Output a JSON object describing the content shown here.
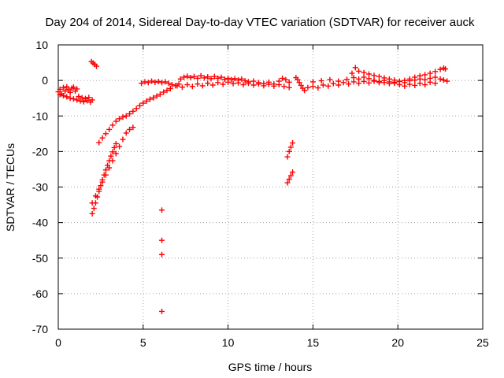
{
  "chart_data": {
    "type": "scatter",
    "title": "Day 204 of 2014, Sidereal Day-to-day VTEC variation (SDTVAR) for receiver auck",
    "xlabel": "GPS time / hours",
    "ylabel": "SDTVAR / TECUs",
    "xlim": [
      0,
      25
    ],
    "ylim": [
      -70,
      10
    ],
    "xticks": [
      "0",
      "5",
      "10",
      "15",
      "20",
      "25"
    ],
    "yticks": [
      "10",
      "0",
      "-10",
      "-20",
      "-30",
      "-40",
      "-50",
      "-60",
      "-70"
    ],
    "grid": true,
    "marker": "+",
    "color": "#ff0000",
    "series": [
      {
        "name": "SDTVAR",
        "points": [
          [
            0.0,
            -3.2
          ],
          [
            0.1,
            -2.5
          ],
          [
            0.2,
            -3.8
          ],
          [
            0.3,
            -2.0
          ],
          [
            0.4,
            -3.0
          ],
          [
            0.5,
            -1.8
          ],
          [
            0.6,
            -2.6
          ],
          [
            0.7,
            -3.4
          ],
          [
            0.8,
            -2.2
          ],
          [
            0.9,
            -1.9
          ],
          [
            1.0,
            -3.0
          ],
          [
            1.1,
            -2.4
          ],
          [
            0.1,
            -4.0
          ],
          [
            0.3,
            -4.3
          ],
          [
            0.5,
            -4.6
          ],
          [
            0.7,
            -5.0
          ],
          [
            0.9,
            -5.2
          ],
          [
            1.1,
            -5.5
          ],
          [
            1.3,
            -5.8
          ],
          [
            1.5,
            -6.0
          ],
          [
            1.7,
            -5.7
          ],
          [
            1.9,
            -6.1
          ],
          [
            2.0,
            -5.5
          ],
          [
            1.2,
            -4.5
          ],
          [
            1.4,
            -4.9
          ],
          [
            1.6,
            -5.1
          ],
          [
            1.8,
            -4.8
          ],
          [
            1.95,
            5.3
          ],
          [
            2.05,
            4.9
          ],
          [
            2.15,
            4.5
          ],
          [
            2.25,
            4.0
          ],
          [
            2.0,
            -37.5
          ],
          [
            2.1,
            -36.0
          ],
          [
            2.2,
            -34.5
          ],
          [
            2.3,
            -32.8
          ],
          [
            2.4,
            -31.2
          ],
          [
            2.5,
            -29.6
          ],
          [
            2.6,
            -28.0
          ],
          [
            2.7,
            -26.6
          ],
          [
            2.8,
            -25.2
          ],
          [
            2.9,
            -23.9
          ],
          [
            3.0,
            -22.6
          ],
          [
            3.1,
            -21.3
          ],
          [
            3.2,
            -20.1
          ],
          [
            3.3,
            -18.9
          ],
          [
            3.4,
            -17.8
          ],
          [
            2.0,
            -34.5
          ],
          [
            2.2,
            -32.5
          ],
          [
            2.4,
            -30.6
          ],
          [
            2.6,
            -28.6
          ],
          [
            2.8,
            -26.6
          ],
          [
            3.0,
            -24.6
          ],
          [
            3.2,
            -22.6
          ],
          [
            3.4,
            -20.6
          ],
          [
            3.6,
            -18.6
          ],
          [
            3.8,
            -16.6
          ],
          [
            4.0,
            -14.8
          ],
          [
            4.2,
            -13.8
          ],
          [
            4.4,
            -13.2
          ],
          [
            2.4,
            -17.5
          ],
          [
            2.6,
            -16.2
          ],
          [
            2.8,
            -15.0
          ],
          [
            3.0,
            -13.8
          ],
          [
            3.2,
            -12.6
          ],
          [
            3.4,
            -11.5
          ],
          [
            3.6,
            -10.8
          ],
          [
            3.8,
            -10.3
          ],
          [
            4.0,
            -10.0
          ],
          [
            4.2,
            -9.4
          ],
          [
            4.4,
            -8.7
          ],
          [
            4.6,
            -7.9
          ],
          [
            4.8,
            -7.1
          ],
          [
            5.0,
            -6.4
          ],
          [
            5.2,
            -5.8
          ],
          [
            5.4,
            -5.3
          ],
          [
            5.6,
            -4.9
          ],
          [
            5.8,
            -4.4
          ],
          [
            6.0,
            -3.9
          ],
          [
            6.2,
            -3.3
          ],
          [
            6.4,
            -2.8
          ],
          [
            6.6,
            -2.3
          ],
          [
            4.9,
            -0.8
          ],
          [
            5.1,
            -0.4
          ],
          [
            5.3,
            -0.6
          ],
          [
            5.5,
            -0.2
          ],
          [
            5.7,
            -0.5
          ],
          [
            5.9,
            -0.3
          ],
          [
            6.1,
            -0.6
          ],
          [
            6.3,
            -0.4
          ],
          [
            6.5,
            -0.8
          ],
          [
            6.7,
            -1.2
          ],
          [
            6.9,
            -1.5
          ],
          [
            7.1,
            -1.0
          ],
          [
            7.2,
            0.4
          ],
          [
            7.4,
            0.9
          ],
          [
            7.6,
            1.2
          ],
          [
            7.8,
            0.8
          ],
          [
            8.0,
            1.1
          ],
          [
            8.2,
            0.6
          ],
          [
            8.4,
            1.3
          ],
          [
            8.6,
            0.7
          ],
          [
            8.8,
            1.0
          ],
          [
            9.0,
            0.5
          ],
          [
            9.2,
            1.1
          ],
          [
            9.4,
            0.6
          ],
          [
            9.6,
            0.9
          ],
          [
            9.8,
            0.3
          ],
          [
            10.0,
            0.6
          ],
          [
            10.2,
            0.2
          ],
          [
            10.4,
            0.5
          ],
          [
            10.6,
            0.1
          ],
          [
            10.8,
            0.4
          ],
          [
            11.0,
            -0.1
          ],
          [
            7.0,
            -1.5
          ],
          [
            7.3,
            -1.9
          ],
          [
            7.6,
            -1.2
          ],
          [
            7.9,
            -1.7
          ],
          [
            8.2,
            -1.0
          ],
          [
            8.5,
            -1.5
          ],
          [
            8.8,
            -0.8
          ],
          [
            9.1,
            -1.3
          ],
          [
            9.4,
            -0.6
          ],
          [
            9.7,
            -1.1
          ],
          [
            10.0,
            -0.5
          ],
          [
            10.3,
            -0.9
          ],
          [
            10.6,
            -0.7
          ],
          [
            10.9,
            -1.2
          ],
          [
            11.2,
            -0.8
          ],
          [
            11.5,
            -1.3
          ],
          [
            11.8,
            -1.0
          ],
          [
            12.1,
            -1.5
          ],
          [
            12.4,
            -1.1
          ],
          [
            12.7,
            -1.6
          ],
          [
            13.0,
            -1.2
          ],
          [
            13.3,
            -1.7
          ],
          [
            13.6,
            -2.0
          ],
          [
            11.2,
            -0.4
          ],
          [
            11.5,
            -0.2
          ],
          [
            11.8,
            -0.6
          ],
          [
            12.1,
            -0.9
          ],
          [
            12.4,
            -0.5
          ],
          [
            12.7,
            -1.0
          ],
          [
            13.0,
            -0.2
          ],
          [
            13.2,
            0.6
          ],
          [
            13.4,
            0.2
          ],
          [
            13.6,
            -0.5
          ],
          [
            6.1,
            -36.5
          ],
          [
            6.1,
            -45.0
          ],
          [
            6.1,
            -49.0
          ],
          [
            6.1,
            -65.0
          ],
          [
            13.5,
            -21.5
          ],
          [
            13.6,
            -20.0
          ],
          [
            13.7,
            -18.8
          ],
          [
            13.8,
            -17.6
          ],
          [
            13.5,
            -28.8
          ],
          [
            13.6,
            -27.8
          ],
          [
            13.7,
            -26.8
          ],
          [
            13.8,
            -25.8
          ],
          [
            14.0,
            0.8
          ],
          [
            14.1,
            0.2
          ],
          [
            14.2,
            -0.6
          ],
          [
            14.3,
            -1.4
          ],
          [
            14.4,
            -2.2
          ],
          [
            14.5,
            -2.8
          ],
          [
            14.7,
            -2.0
          ],
          [
            15.0,
            -1.7
          ],
          [
            15.3,
            -2.1
          ],
          [
            15.6,
            -1.3
          ],
          [
            15.9,
            -1.6
          ],
          [
            16.2,
            -0.9
          ],
          [
            16.5,
            -1.3
          ],
          [
            16.8,
            -0.6
          ],
          [
            17.1,
            -1.0
          ],
          [
            17.4,
            -0.4
          ],
          [
            17.7,
            -0.8
          ],
          [
            18.0,
            -0.3
          ],
          [
            18.3,
            -0.7
          ],
          [
            18.6,
            -0.2
          ],
          [
            18.9,
            -0.6
          ],
          [
            19.2,
            0.0
          ],
          [
            19.5,
            -0.4
          ],
          [
            19.8,
            -0.8
          ],
          [
            20.1,
            -1.2
          ],
          [
            20.4,
            -1.6
          ],
          [
            20.7,
            -1.1
          ],
          [
            21.0,
            -1.4
          ],
          [
            21.3,
            -0.8
          ],
          [
            21.6,
            -1.2
          ],
          [
            21.9,
            -0.5
          ],
          [
            22.2,
            -0.8
          ],
          [
            15.0,
            -0.4
          ],
          [
            15.5,
            -0.1
          ],
          [
            16.0,
            0.2
          ],
          [
            16.5,
            -0.2
          ],
          [
            17.0,
            0.3
          ],
          [
            17.3,
            2.0
          ],
          [
            17.5,
            3.6
          ],
          [
            17.7,
            2.6
          ],
          [
            18.0,
            2.2
          ],
          [
            18.3,
            1.8
          ],
          [
            18.6,
            1.4
          ],
          [
            18.9,
            1.1
          ],
          [
            19.2,
            0.7
          ],
          [
            19.5,
            0.4
          ],
          [
            19.8,
            0.1
          ],
          [
            20.1,
            -0.2
          ],
          [
            20.4,
            0.0
          ],
          [
            20.7,
            0.4
          ],
          [
            21.0,
            0.9
          ],
          [
            21.3,
            1.3
          ],
          [
            21.6,
            1.6
          ],
          [
            21.9,
            2.0
          ],
          [
            22.2,
            2.5
          ],
          [
            22.5,
            3.1
          ],
          [
            22.7,
            3.5
          ],
          [
            22.8,
            3.2
          ],
          [
            17.4,
            0.8
          ],
          [
            17.7,
            0.4
          ],
          [
            18.0,
            0.9
          ],
          [
            18.3,
            0.5
          ],
          [
            18.6,
            0.0
          ],
          [
            18.9,
            -0.3
          ],
          [
            19.2,
            -0.6
          ],
          [
            19.5,
            -0.9
          ],
          [
            19.8,
            -0.5
          ],
          [
            20.1,
            -0.3
          ],
          [
            20.4,
            -0.6
          ],
          [
            20.7,
            -0.1
          ],
          [
            21.0,
            0.1
          ],
          [
            21.3,
            0.4
          ],
          [
            21.6,
            0.2
          ],
          [
            21.9,
            0.6
          ],
          [
            22.2,
            0.9
          ],
          [
            22.5,
            0.4
          ],
          [
            22.7,
            0.1
          ],
          [
            22.9,
            -0.2
          ]
        ]
      }
    ]
  }
}
